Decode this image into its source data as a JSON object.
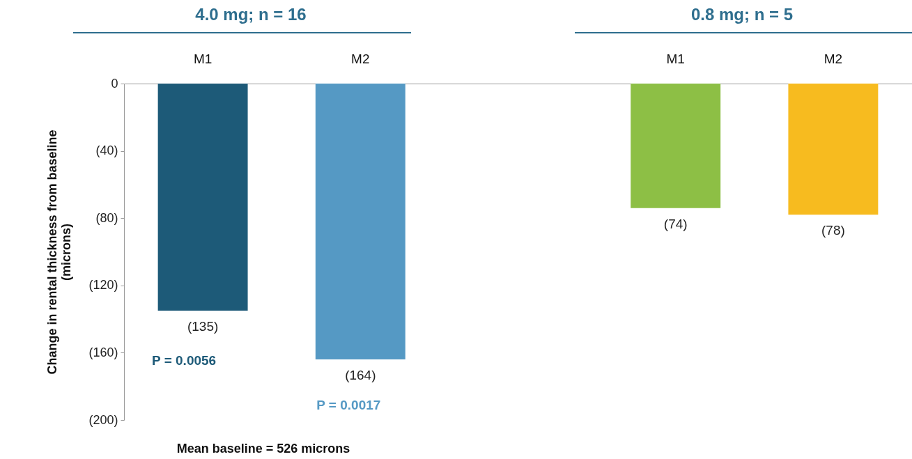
{
  "chart_data": {
    "type": "bar",
    "categories": [
      "M1",
      "M2",
      null,
      "M1",
      "M2"
    ],
    "values": [
      -135,
      -164,
      null,
      -74,
      -78
    ],
    "colors": [
      "#1d5a78",
      "#5599c4",
      "#ffffff",
      "#8dbf45",
      "#f7bb1f"
    ],
    "value_labels": [
      "(135)",
      "(164)",
      null,
      "(74)",
      "(78)"
    ],
    "ylabel": "Change in rental thickness from baseline (microns)",
    "ylim": [
      -200,
      0
    ],
    "yticks": [
      {
        "value": -200,
        "label": "(200)"
      },
      {
        "value": -160,
        "label": "(160)"
      },
      {
        "value": -120,
        "label": "(120)"
      },
      {
        "value": -80,
        "label": "(80)"
      },
      {
        "value": -40,
        "label": "(40)"
      },
      0
    ],
    "annotations": [
      "4.0 mg; n = 16",
      "0.8 mg; n = 5",
      "P = 0.0056",
      "P = 0.0017",
      "Mean baseline = 526 microns"
    ],
    "grid": false
  }
}
